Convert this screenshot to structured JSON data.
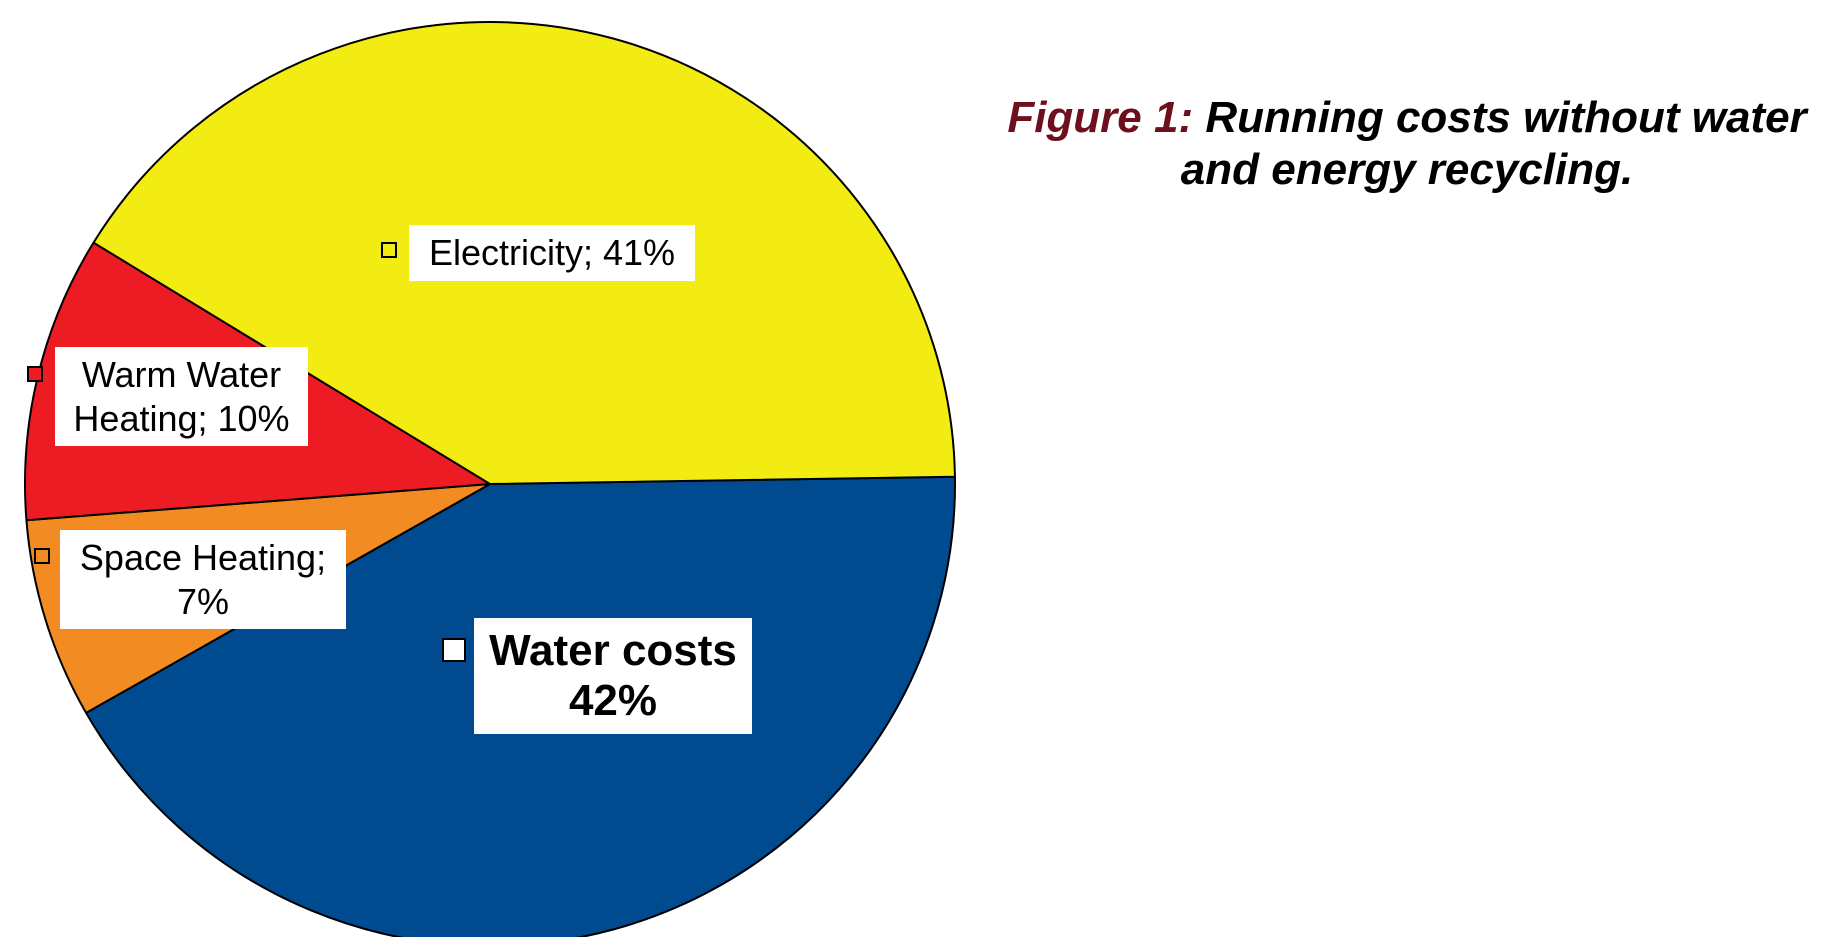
{
  "caption": {
    "lead": "Figure 1:",
    "text_line1": "Running costs without water",
    "text_line2": "and energy recycling."
  },
  "colors": {
    "water": "#004a8f",
    "electricity": "#f3ec13",
    "warm_water_heating": "#ed1c24",
    "space_heating": "#f28c22",
    "outline": "#000000",
    "caption_lead": "#6e0f1d"
  },
  "chart_data": {
    "type": "pie",
    "title": "",
    "slices": [
      {
        "label_line1": "Water costs",
        "label_line2": "42%",
        "value": 42,
        "color": "#004a8f"
      },
      {
        "label_line1": "Space Heating;",
        "label_line2": "7%",
        "value": 7,
        "color": "#f28c22"
      },
      {
        "label_line1": "Warm Water",
        "label_line2": "Heating; 10%",
        "value": 10,
        "color": "#ed1c24"
      },
      {
        "label_line1": "Electricity; 41%",
        "label_line2": "",
        "value": 41,
        "color": "#f3ec13"
      }
    ]
  }
}
